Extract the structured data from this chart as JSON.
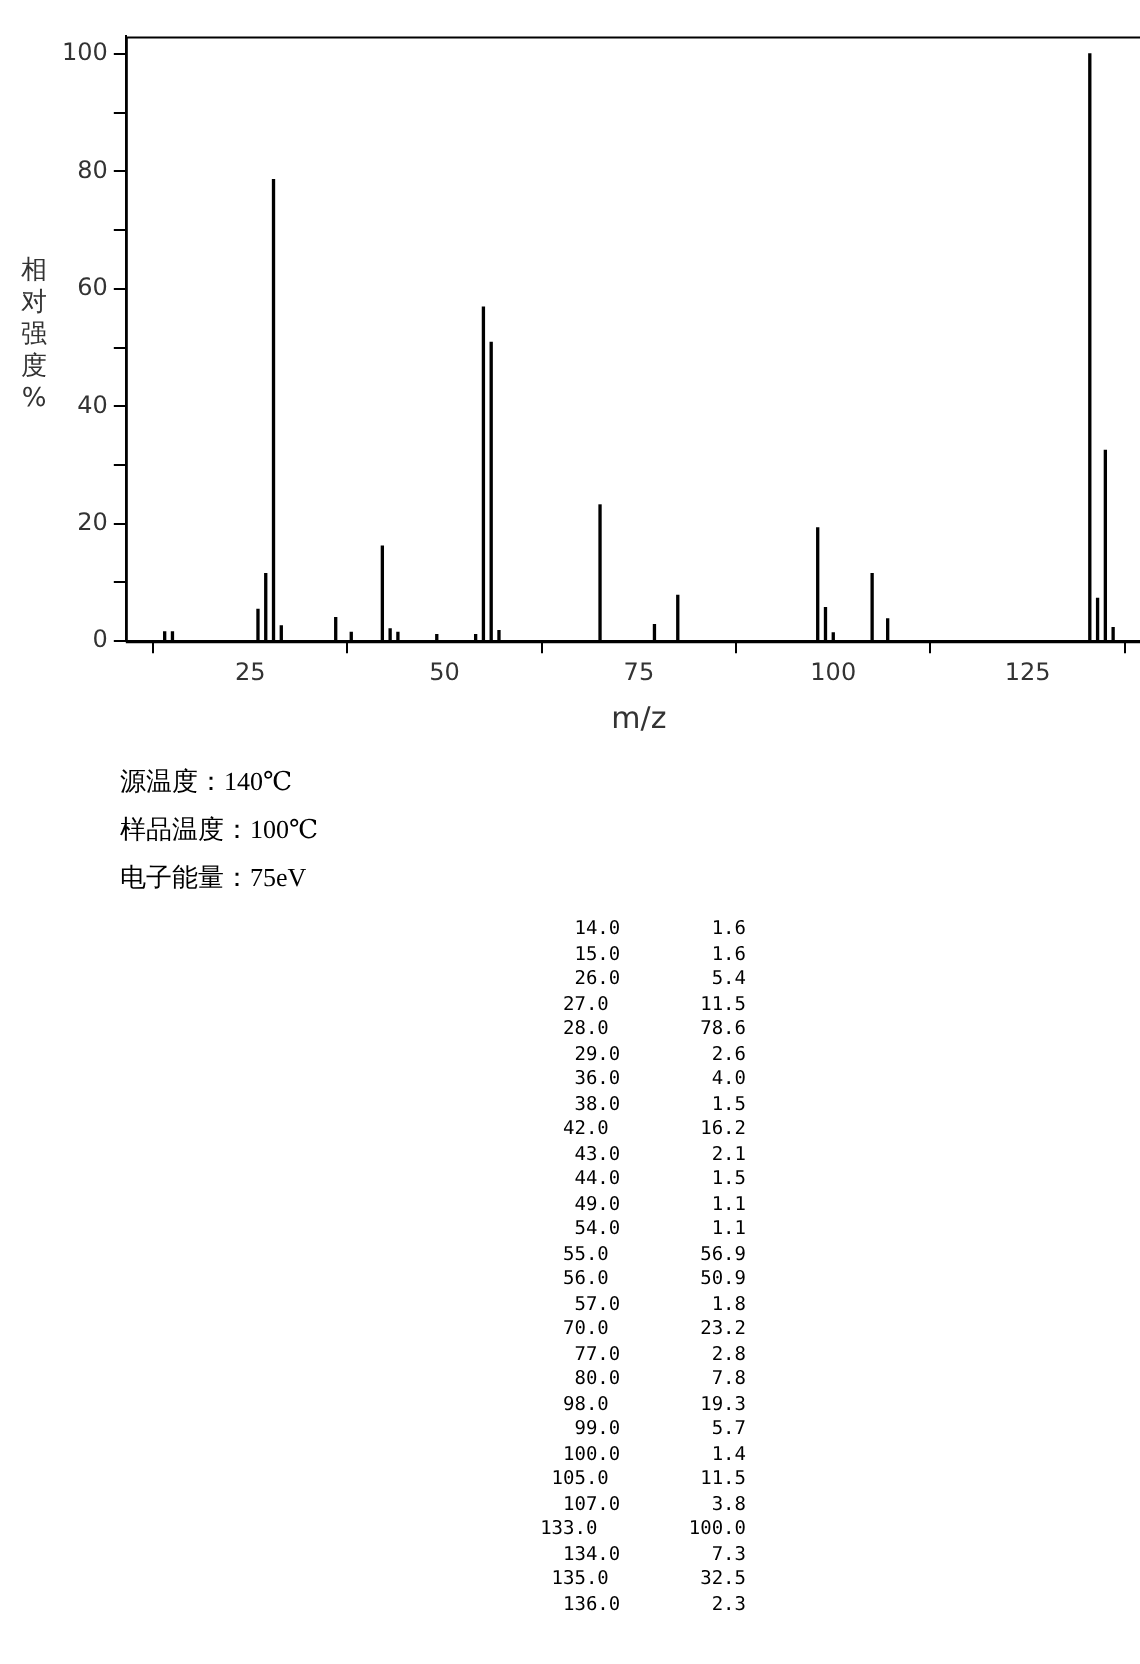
{
  "chart_data": {
    "type": "bar",
    "xlabel": "m/z",
    "ylabel": "相对强度%",
    "x": [
      14,
      15,
      26,
      27,
      28,
      29,
      36,
      38,
      42,
      43,
      44,
      49,
      54,
      55,
      56,
      57,
      70,
      77,
      80,
      98,
      99,
      100,
      105,
      107,
      133,
      134,
      135,
      136
    ],
    "values": [
      1.6,
      1.6,
      5.4,
      11.5,
      78.6,
      2.6,
      4.0,
      1.5,
      16.2,
      2.1,
      1.5,
      1.1,
      1.1,
      56.9,
      50.9,
      1.8,
      23.2,
      2.8,
      7.8,
      19.3,
      5.7,
      1.4,
      11.5,
      3.8,
      100.0,
      7.3,
      32.5,
      2.3
    ],
    "color": "#000000",
    "xlim": [
      9,
      141
    ],
    "xticks": [
      25,
      50,
      75,
      100,
      125
    ],
    "ylim": [
      0,
      103
    ],
    "yticks": [
      0,
      {
        "value": 10,
        "label": null
      },
      20,
      {
        "value": 30,
        "label": null
      },
      40,
      {
        "value": 50,
        "label": null
      },
      60,
      {
        "value": 70,
        "label": null
      },
      80,
      {
        "value": 90,
        "label": null
      },
      100
    ],
    "grid": false,
    "legend": false,
    "annotations": [
      "源温度：140℃",
      "样品温度：100℃",
      "电子能量：75eV",
      "14.0 1.6",
      "15.0 1.6",
      "26.0 5.4",
      "27.0 11.5",
      "28.0 78.6",
      "29.0 2.6",
      "36.0 4.0",
      "38.0 1.5",
      "42.0 16.2",
      "43.0 2.1",
      "44.0 1.5",
      "49.0 1.1",
      "54.0 1.1",
      "55.0 56.9",
      "56.0 50.9",
      "57.0 1.8",
      "70.0 23.2",
      "77.0 2.8",
      "80.0 7.8",
      "98.0 19.3",
      "99.0 5.7",
      "100.0 1.4",
      "105.0 11.5",
      "107.0 3.8",
      "133.0 100.0",
      "134.0 7.3",
      "135.0 32.5",
      "136.0 2.3"
    ]
  }
}
